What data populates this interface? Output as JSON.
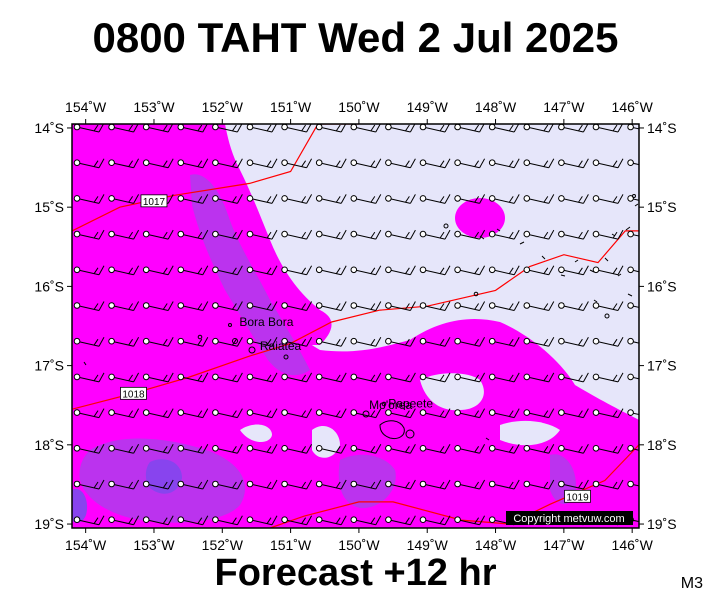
{
  "title": "0800 TAHT Wed 2 Jul 2025",
  "subtitle": "Forecast +12 hr",
  "corner_tag": "M3",
  "copyright": "Copyright metvuw.com",
  "colors": {
    "background": "#e6e6fa",
    "precip_light": "#ff00ff",
    "precip_medium": "#bb33ee",
    "precip_heavy": "#8844ee",
    "isobar": "#ff0000",
    "coast": "#000000"
  },
  "map": {
    "lon_range": [
      -154.2,
      -145.9
    ],
    "lat_range": [
      -19.05,
      -13.95
    ],
    "lon_ticks": [
      {
        "value": -154,
        "label": "154˚W"
      },
      {
        "value": -153,
        "label": "153˚W"
      },
      {
        "value": -152,
        "label": "152˚W"
      },
      {
        "value": -151,
        "label": "151˚W"
      },
      {
        "value": -150,
        "label": "150˚W"
      },
      {
        "value": -149,
        "label": "149˚W"
      },
      {
        "value": -148,
        "label": "148˚W"
      },
      {
        "value": -147,
        "label": "147˚W"
      },
      {
        "value": -146,
        "label": "146˚W"
      }
    ],
    "lat_ticks": [
      {
        "value": -14,
        "label": "14˚S"
      },
      {
        "value": -15,
        "label": "15˚S"
      },
      {
        "value": -16,
        "label": "16˚S"
      },
      {
        "value": -17,
        "label": "17˚S"
      },
      {
        "value": -18,
        "label": "18˚S"
      },
      {
        "value": -19,
        "label": "19˚S"
      }
    ],
    "places": [
      {
        "name": "Bora Bora",
        "lon": -151.75,
        "lat": -16.5
      },
      {
        "name": "Raiatea",
        "lon": -151.45,
        "lat": -16.8
      },
      {
        "name": "Mo'orea",
        "lon": -149.85,
        "lat": -17.55
      },
      {
        "name": "Papeete",
        "lon": -149.57,
        "lat": -17.53
      }
    ],
    "isobars": [
      {
        "label": "1017",
        "label_at": [
          -153.0,
          -14.92
        ],
        "points": [
          [
            -154.2,
            -15.3
          ],
          [
            -153.5,
            -15.0
          ],
          [
            -152.7,
            -14.85
          ],
          [
            -151.6,
            -14.7
          ],
          [
            -151.0,
            -14.55
          ],
          [
            -150.6,
            -13.95
          ],
          [
            -150.0,
            -13.95
          ]
        ]
      },
      {
        "label": "1018",
        "label_at": [
          -153.3,
          -17.35
        ],
        "points": [
          [
            -154.2,
            -17.55
          ],
          [
            -153.3,
            -17.35
          ],
          [
            -152.5,
            -17.15
          ],
          [
            -151.6,
            -16.88
          ],
          [
            -151.0,
            -16.72
          ],
          [
            -150.4,
            -16.45
          ],
          [
            -149.7,
            -16.3
          ],
          [
            -149.0,
            -16.25
          ],
          [
            -148.0,
            -16.05
          ],
          [
            -147.5,
            -15.75
          ],
          [
            -147.0,
            -15.6
          ],
          [
            -146.5,
            -15.7
          ],
          [
            -146.1,
            -15.3
          ],
          [
            -145.9,
            -15.3
          ]
        ]
      },
      {
        "label": "1019",
        "label_at": [
          -146.8,
          -18.65
        ],
        "points": [
          [
            -151.3,
            -19.05
          ],
          [
            -150.8,
            -18.9
          ],
          [
            -150.0,
            -18.72
          ],
          [
            -149.5,
            -18.72
          ],
          [
            -148.5,
            -18.95
          ],
          [
            -147.8,
            -19.0
          ],
          [
            -147.2,
            -18.75
          ],
          [
            -146.4,
            -18.45
          ],
          [
            -145.9,
            -18.0
          ]
        ]
      }
    ]
  }
}
